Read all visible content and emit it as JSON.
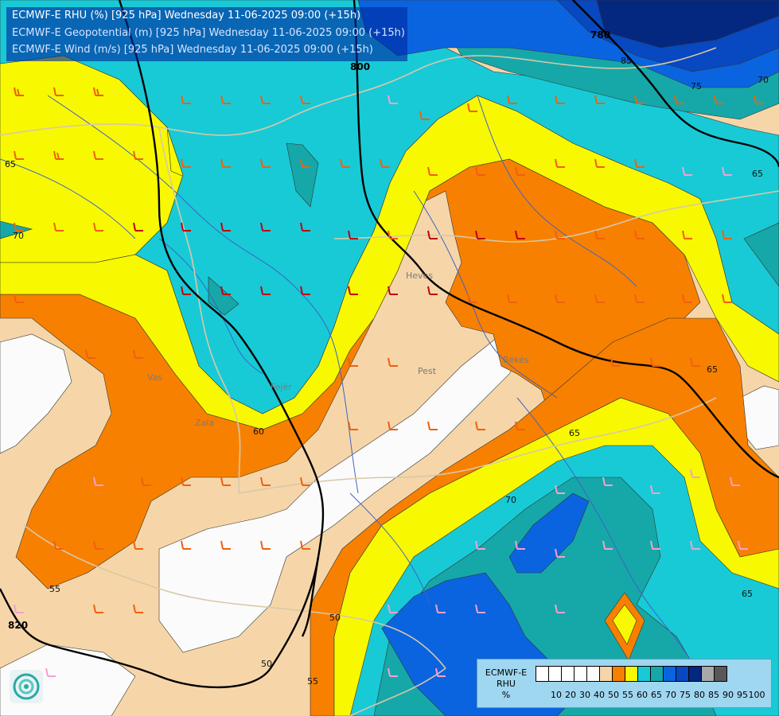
{
  "titles": {
    "line1": "ECMWF-E RHU (%) [925 hPa] Wednesday 11-06-2025 09:00 (+15h)",
    "line2": "ECMWF-E Geopotential (m) [925 hPa] Wednesday 11-06-2025 09:00 (+15h)",
    "line3": "ECMWF-E Wind (m/s) [925 hPa] Wednesday 11-06-2025 09:00 (+15h)"
  },
  "legend": {
    "title_lines": [
      "ECMWF-E",
      "RHU",
      "%"
    ],
    "bins": [
      {
        "label": "10",
        "color": "#ffffff"
      },
      {
        "label": "20",
        "color": "#ffffff"
      },
      {
        "label": "30",
        "color": "#ffffff"
      },
      {
        "label": "40",
        "color": "#ffffff"
      },
      {
        "label": "50",
        "color": "#fbfbfb"
      },
      {
        "label": "55",
        "color": "#f6d6a8"
      },
      {
        "label": "60",
        "color": "#f88000"
      },
      {
        "label": "65",
        "color": "#f8f800"
      },
      {
        "label": "70",
        "color": "#18cad6"
      },
      {
        "label": "75",
        "color": "#16a8a8"
      },
      {
        "label": "80",
        "color": "#0a64e0"
      },
      {
        "label": "85",
        "color": "#0848c0"
      },
      {
        "label": "90",
        "color": "#042880"
      },
      {
        "label": "95",
        "color": "#a8a8a8"
      },
      {
        "label": "100",
        "color": "#585858"
      }
    ]
  },
  "contour_labels": {
    "rhu": [
      "65",
      "70",
      "60",
      "55",
      "65",
      "70",
      "65",
      "65",
      "50",
      "55",
      "50",
      "75",
      "70",
      "65",
      "85"
    ],
    "geopotential": [
      "780",
      "800",
      "820"
    ]
  },
  "place_labels": [
    "Pest",
    "Békés",
    "Heves",
    "Fejér",
    "Zala",
    "Vas"
  ],
  "colors": {
    "rh_50": "#fbfbfb",
    "rh_55": "#f6d6a8",
    "rh_60": "#f88000",
    "rh_65": "#f8f800",
    "rh_70": "#18cad6",
    "rh_75": "#16a8a8",
    "rh_80": "#0a64e0",
    "rh_85": "#0848c0",
    "rh_90": "#042880",
    "border": "#d8c8a8",
    "river": "#3c64c8",
    "isohypse": "#000000"
  },
  "logo": {
    "icon": "swirl-logo-icon"
  }
}
